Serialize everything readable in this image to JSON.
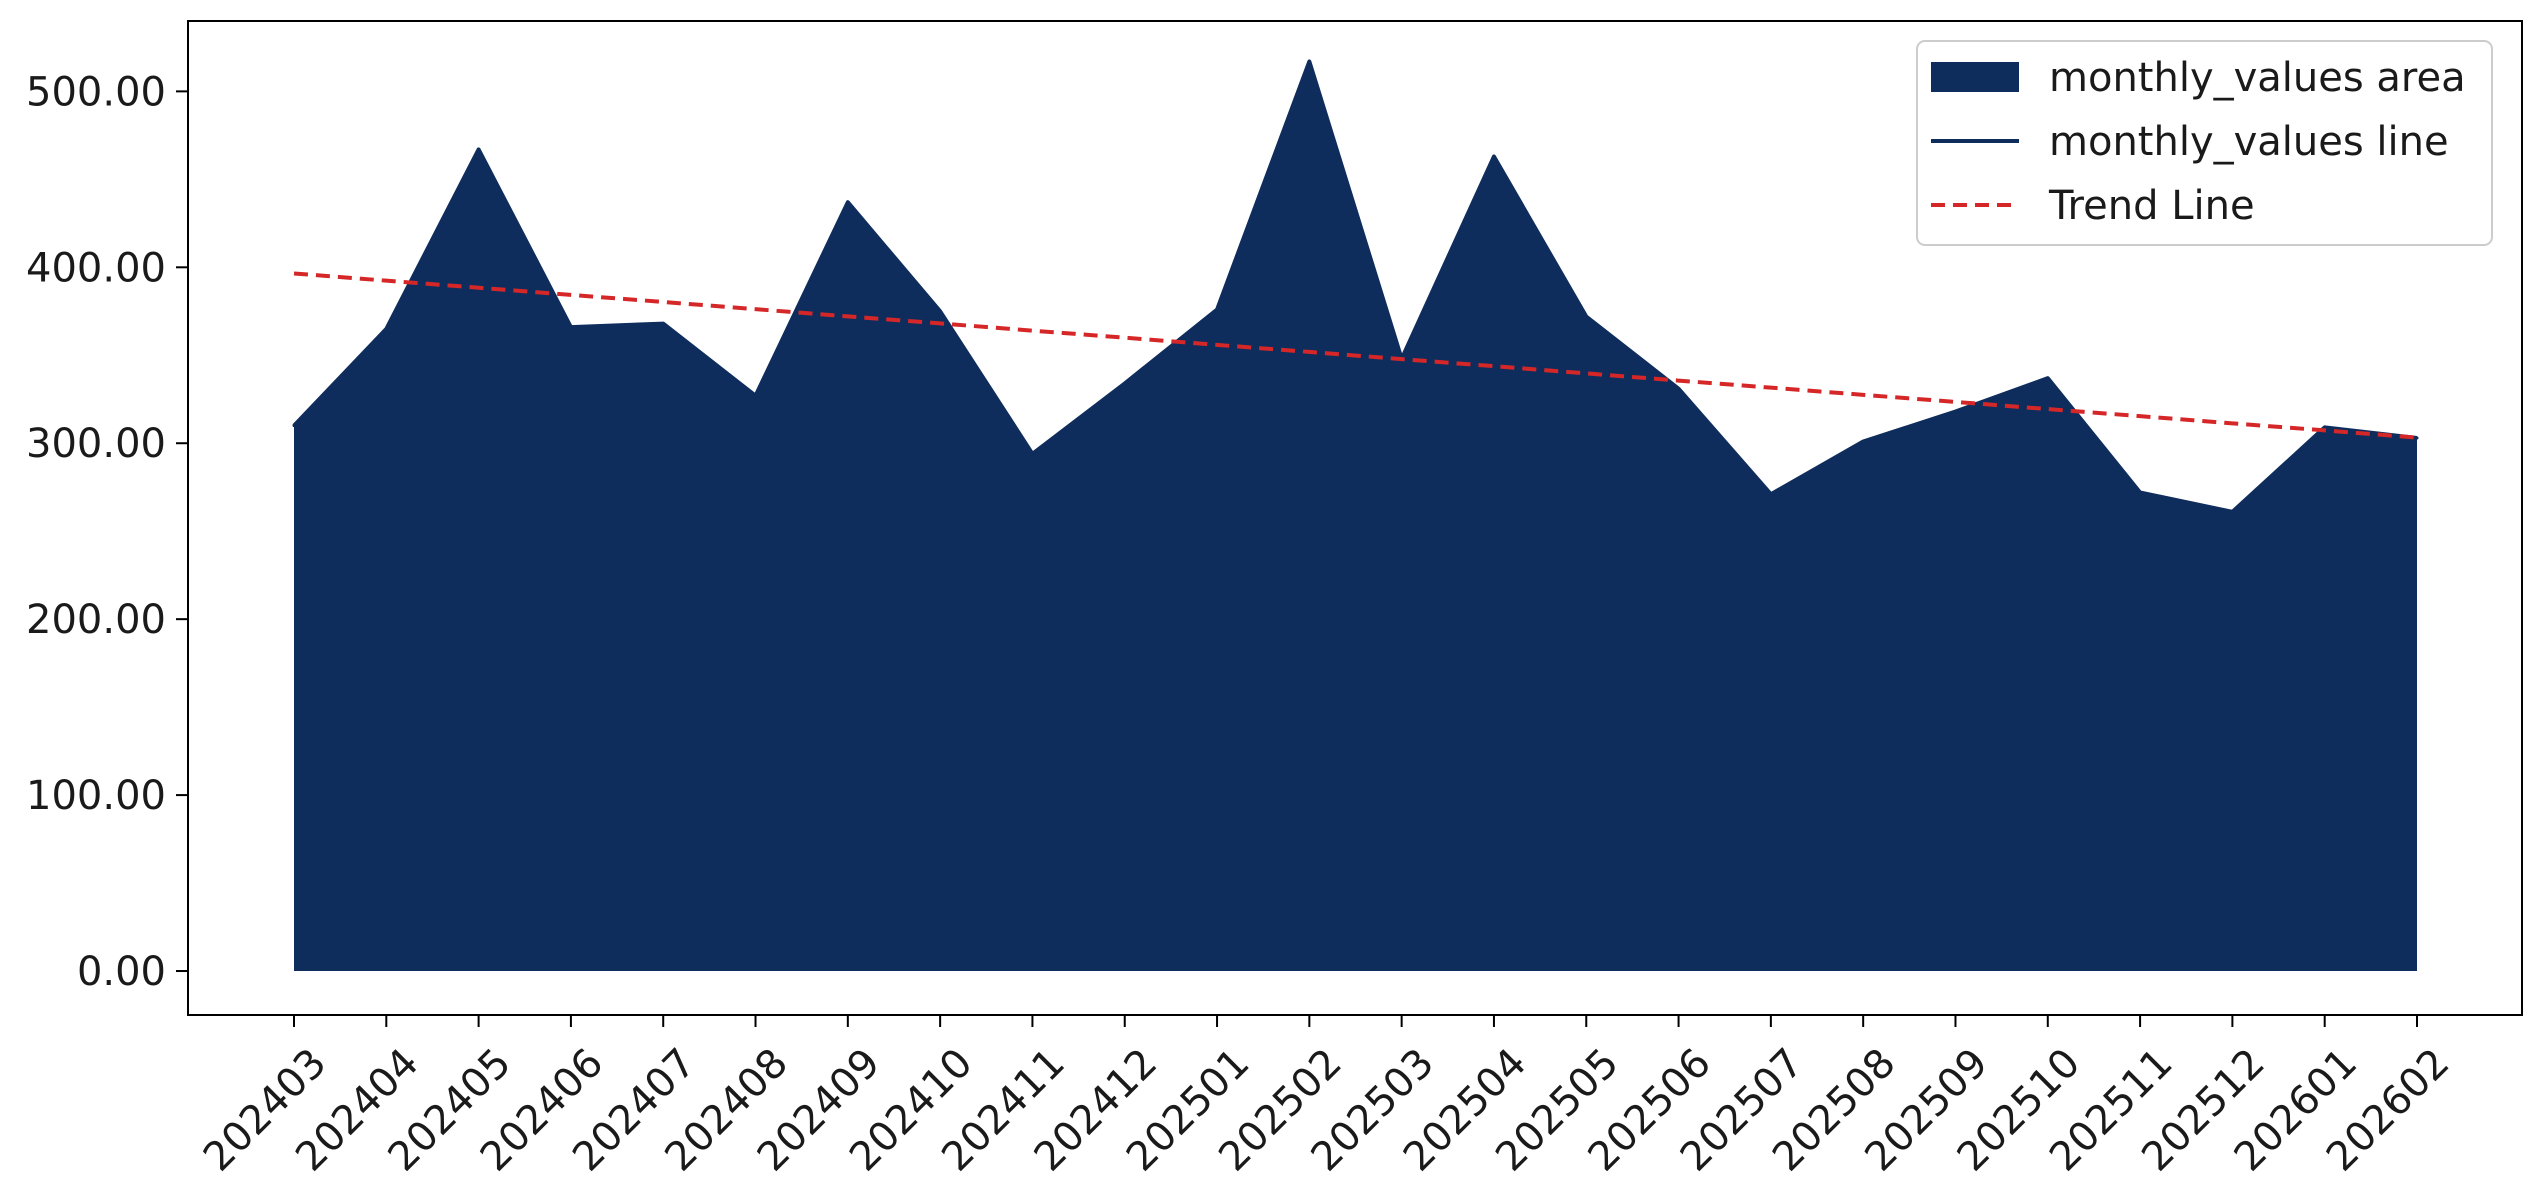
{
  "chart_data": {
    "type": "area",
    "title": "",
    "xlabel": "",
    "ylabel": "",
    "categories": [
      "202403",
      "202404",
      "202405",
      "202406",
      "202407",
      "202408",
      "202409",
      "202410",
      "202411",
      "202412",
      "202501",
      "202502",
      "202503",
      "202504",
      "202505",
      "202506",
      "202507",
      "202508",
      "202509",
      "202510",
      "202511",
      "202512",
      "202601",
      "202602"
    ],
    "series": [
      {
        "name": "monthly_values area",
        "kind": "area",
        "color": "#0f2d5c",
        "values": [
          310,
          365,
          467,
          366,
          368,
          327,
          437,
          375,
          294,
          334,
          376,
          517,
          348,
          463,
          372,
          331,
          271,
          301,
          318,
          337,
          272,
          261,
          309,
          303
        ]
      },
      {
        "name": "monthly_values line",
        "kind": "line",
        "color": "#0f2d5c",
        "values": [
          310,
          365,
          467,
          366,
          368,
          327,
          437,
          375,
          294,
          334,
          376,
          517,
          348,
          463,
          372,
          331,
          271,
          301,
          318,
          337,
          272,
          261,
          309,
          303
        ]
      },
      {
        "name": "Trend Line",
        "kind": "trend",
        "color": "#d62728",
        "style": "dashed",
        "values": [
          396.5,
          392.4,
          388.4,
          384.3,
          380.3,
          376.2,
          372.1,
          368.1,
          364.0,
          360.0,
          355.9,
          351.9,
          347.8,
          343.8,
          339.7,
          335.6,
          331.6,
          327.5,
          323.5,
          319.4,
          315.4,
          311.3,
          307.3,
          303.2
        ]
      }
    ],
    "ylim": [
      -25,
      540
    ],
    "yticks": [
      0,
      100,
      200,
      300,
      400,
      500
    ],
    "ytick_labels": [
      "0.00",
      "100.00",
      "200.00",
      "300.00",
      "400.00",
      "500.00"
    ],
    "grid": false,
    "legend_position": "top-right"
  }
}
